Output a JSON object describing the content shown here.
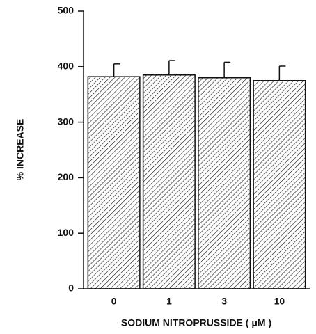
{
  "chart_data": {
    "type": "bar",
    "x_label": "SODIUM  NITROPRUSSIDE  ( μM )",
    "y_label": "% INCREASE",
    "categories": [
      "0",
      "1",
      "3",
      "10"
    ],
    "values": [
      382,
      385,
      380,
      375
    ],
    "errors": [
      23,
      26,
      28,
      26
    ],
    "color": "#111111",
    "hatch": true,
    "ylim": [
      0,
      500
    ],
    "yticks": [
      0,
      100,
      200,
      300,
      400,
      500
    ]
  }
}
